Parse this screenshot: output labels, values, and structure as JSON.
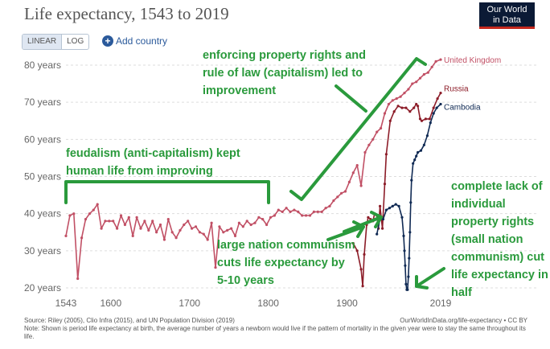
{
  "header": {
    "title": "Life expectancy, 1543 to 2019",
    "logo_line1": "Our World",
    "logo_line2": "in Data"
  },
  "controls": {
    "linear_label": "LINEAR",
    "log_label": "LOG",
    "add_country_icon": "plus",
    "add_country_label": "Add country"
  },
  "footer": {
    "source": "Source: Riley (2005), Clio Infra (2015), and UN Population Division (2019)",
    "credit": "OurWorldInData.org/life-expectancy • CC BY",
    "note": "Note: Shown is period life expectancy at birth, the average number of years a newborn would live if the pattern of mortality in the given year were to stay the same throughout its life."
  },
  "annotations": {
    "capitalism": "enforcing property rights and rule of law (capitalism) led to improvement",
    "feudalism": "feudalism (anti-capitalism) kept human life from improving",
    "large_communism": "large nation communism cuts life expectancy by 5-10 years",
    "small_communism": "complete lack of individual property rights (small nation communism) cut life expectancy in half"
  },
  "colors": {
    "uk": "#c15065",
    "russia": "#8c1c28",
    "cambodia": "#102a54",
    "annotation": "#2a9a3c",
    "grid": "#dddddd"
  },
  "chart_data": {
    "type": "line",
    "title": "Life expectancy, 1543 to 2019",
    "xlabel": "",
    "ylabel": "",
    "xlim": [
      1543,
      2019
    ],
    "ylim": [
      20,
      80
    ],
    "x_ticks": [
      1543,
      1600,
      1700,
      1800,
      1900,
      2019
    ],
    "y_ticks": [
      {
        "value": 20,
        "label": "20 years"
      },
      {
        "value": 30,
        "label": "30 years"
      },
      {
        "value": 40,
        "label": "40 years"
      },
      {
        "value": 50,
        "label": "50 years"
      },
      {
        "value": 60,
        "label": "60 years"
      },
      {
        "value": 70,
        "label": "70 years"
      },
      {
        "value": 80,
        "label": "80 years"
      }
    ],
    "grid": true,
    "series": [
      {
        "name": "United Kingdom",
        "x": [
          1543,
          1548,
          1553,
          1558,
          1563,
          1568,
          1573,
          1578,
          1583,
          1588,
          1593,
          1598,
          1603,
          1608,
          1613,
          1618,
          1623,
          1628,
          1633,
          1638,
          1643,
          1648,
          1653,
          1658,
          1663,
          1668,
          1673,
          1678,
          1683,
          1688,
          1693,
          1698,
          1703,
          1708,
          1713,
          1718,
          1723,
          1728,
          1733,
          1738,
          1743,
          1748,
          1753,
          1758,
          1763,
          1768,
          1773,
          1778,
          1783,
          1788,
          1793,
          1798,
          1803,
          1808,
          1813,
          1818,
          1823,
          1828,
          1833,
          1838,
          1843,
          1848,
          1853,
          1858,
          1863,
          1868,
          1873,
          1878,
          1883,
          1888,
          1893,
          1898,
          1903,
          1908,
          1913,
          1918,
          1923,
          1928,
          1933,
          1938,
          1943,
          1948,
          1953,
          1958,
          1963,
          1968,
          1973,
          1978,
          1983,
          1988,
          1993,
          1998,
          2003,
          2008,
          2013,
          2019
        ],
        "values": [
          34,
          39.5,
          40,
          22.5,
          33.5,
          38.5,
          40,
          41,
          42.5,
          36,
          38,
          38,
          38,
          36,
          39.5,
          37,
          39,
          34,
          39,
          36,
          38,
          35.5,
          38,
          35,
          37,
          33,
          38.5,
          35,
          33.5,
          35.5,
          37,
          38,
          36,
          36.5,
          35,
          34.5,
          33,
          37.5,
          25.5,
          36.5,
          35,
          35.5,
          36,
          34,
          37.5,
          36.5,
          38,
          37,
          37.5,
          39,
          38.5,
          37,
          39,
          39.5,
          41,
          40.5,
          41.5,
          40.5,
          41,
          40.5,
          39.5,
          39.5,
          39.5,
          40.5,
          40.5,
          40.5,
          41.5,
          42,
          43.5,
          44.5,
          45.5,
          46,
          48.5,
          51,
          53,
          47.5,
          56.5,
          58.5,
          60,
          62,
          63,
          67,
          69.5,
          70.5,
          71,
          71.5,
          72.5,
          73.5,
          75,
          75.5,
          76.5,
          77.5,
          78,
          79.5,
          81,
          81.5
        ]
      },
      {
        "name": "Russia",
        "x": [
          1908,
          1913,
          1918,
          1920,
          1922,
          1925,
          1927,
          1930,
          1933,
          1935,
          1938,
          1940,
          1942,
          1945,
          1948,
          1950,
          1955,
          1960,
          1965,
          1970,
          1975,
          1980,
          1985,
          1988,
          1990,
          1993,
          1995,
          2000,
          2005,
          2010,
          2015,
          2019
        ],
        "values": [
          32,
          30,
          25,
          20.5,
          29,
          37,
          39,
          38.5,
          38,
          40,
          39.5,
          36,
          42,
          36,
          48,
          56,
          65,
          67.5,
          69,
          68.5,
          68.5,
          67.5,
          68.5,
          69.5,
          69,
          65.5,
          65,
          65.5,
          65.5,
          68.5,
          71,
          72.5
        ]
      },
      {
        "name": "Cambodia",
        "x": [
          1938,
          1942,
          1946,
          1950,
          1954,
          1958,
          1962,
          1966,
          1970,
          1972,
          1973,
          1974,
          1975,
          1976,
          1977,
          1978,
          1979,
          1980,
          1981,
          1982,
          1984,
          1986,
          1988,
          1990,
          1994,
          1998,
          2002,
          2006,
          2010,
          2014,
          2019
        ],
        "values": [
          34.5,
          38.5,
          38.5,
          41,
          41.5,
          42,
          42.5,
          42,
          39,
          34,
          30,
          26,
          21,
          19.5,
          19.5,
          23,
          28,
          35,
          43,
          49,
          53.5,
          54.5,
          55.5,
          56.5,
          57,
          58.5,
          61,
          64.5,
          67,
          68.5,
          69.5
        ]
      }
    ]
  }
}
